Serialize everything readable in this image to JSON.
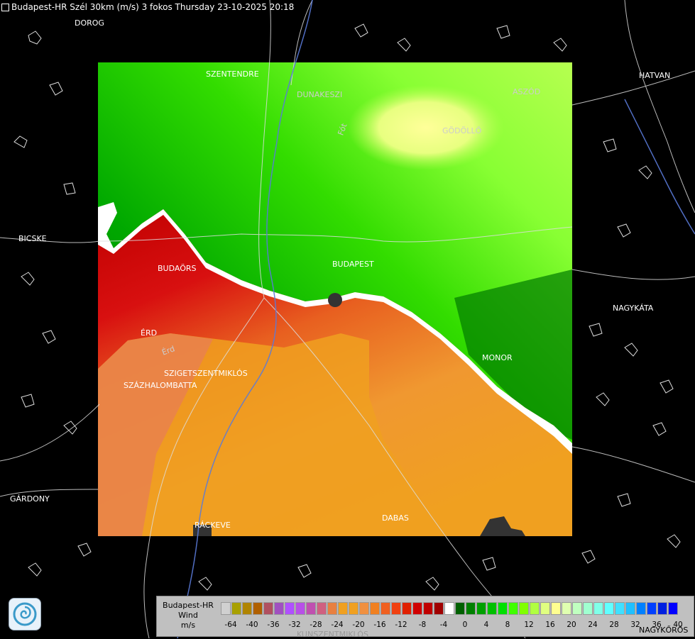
{
  "title": "Budapest-HR Szél 30km (m/s) 3 fokos Thursday 23-10-2025 20:18",
  "cities": [
    {
      "name": "DOROG"
    },
    {
      "name": "SZENTENDRE"
    },
    {
      "name": "DUNAKESZI"
    },
    {
      "name": "Fót"
    },
    {
      "name": "HATVAN"
    },
    {
      "name": "GÖDÖLLŐ"
    },
    {
      "name": "ASZÓD"
    },
    {
      "name": "BICSKE"
    },
    {
      "name": "BUDAÖRS"
    },
    {
      "name": "BUDAPEST"
    },
    {
      "name": "NAGYKÁTA"
    },
    {
      "name": "ÉRD"
    },
    {
      "name": "Érd"
    },
    {
      "name": "MONOR"
    },
    {
      "name": "SZIGETSZENTMIKLÓS"
    },
    {
      "name": "SZÁZHALOMBATTA"
    },
    {
      "name": "GÁRDONY"
    },
    {
      "name": "RÁCKEVE"
    },
    {
      "name": "DABAS"
    },
    {
      "name": "KUNSZENTMIKLÓS"
    },
    {
      "name": "NAGYKŐRÖS"
    }
  ],
  "legend": {
    "line1": "Budapest-HR",
    "line2": "Wind",
    "line3": "m/s",
    "colors": [
      "#d0d0d0",
      "#a8a000",
      "#b08400",
      "#b06000",
      "#b05060",
      "#a050c0",
      "#b050ff",
      "#b850e8",
      "#c050b0",
      "#d06080",
      "#e88040",
      "#f0a020",
      "#f0a020",
      "#f09040",
      "#f08020",
      "#f06020",
      "#f04010",
      "#e02000",
      "#d00000",
      "#c00000",
      "#a00000",
      "#ffffff",
      "#006000",
      "#008000",
      "#00a000",
      "#00c000",
      "#00e000",
      "#40ff00",
      "#80ff00",
      "#b0ff40",
      "#e0ff80",
      "#ffff90",
      "#e0ffb0",
      "#c0ffc0",
      "#a0ffd0",
      "#80ffe8",
      "#60ffff",
      "#40e0ff",
      "#20c0ff",
      "#0080ff",
      "#0040ff",
      "#0020e0",
      "#0000ff"
    ],
    "ticks": [
      "-64",
      "-40",
      "-36",
      "-32",
      "-28",
      "-24",
      "-20",
      "-16",
      "-12",
      "-8",
      "-4",
      "0",
      "4",
      "8",
      "12",
      "16",
      "20",
      "24",
      "28",
      "32",
      "36",
      "40"
    ]
  }
}
